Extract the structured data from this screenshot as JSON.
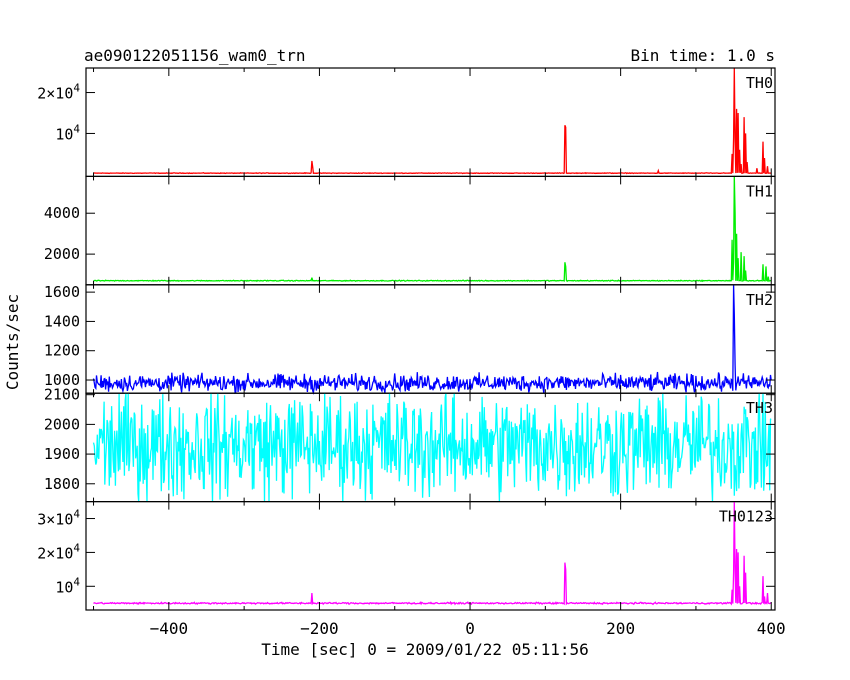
{
  "chart_data": {
    "type": "line",
    "title": "ae090122051156_wam0_trn",
    "subtitle": "Bin time: 1.0 s",
    "xlabel": "Time [sec] 0 = 2009/01/22 05:11:56",
    "ylabel": "Counts/sec",
    "xlim": [
      -510,
      405
    ],
    "xticks": [
      -400,
      -200,
      0,
      200,
      400
    ],
    "xtick_labels": [
      "−400",
      "−200",
      "0",
      "200",
      "400"
    ],
    "grid": false,
    "legend": "none",
    "panels": [
      {
        "name": "TH0",
        "color": "#ff0000",
        "ylim": [
          -500,
          26000
        ],
        "yticks": [
          {
            "value": 10000,
            "mant": "",
            "exp": "4"
          },
          {
            "value": 20000,
            "mant": "2×",
            "exp": "4"
          }
        ],
        "baseline": 300,
        "noise": 60,
        "peaks": [
          [
            -210,
            3300
          ],
          [
            -209,
            1800
          ],
          [
            126,
            12000
          ],
          [
            127,
            11500
          ],
          [
            250,
            900
          ],
          [
            348,
            5000
          ],
          [
            350,
            9000
          ],
          [
            351,
            26000
          ],
          [
            352,
            8000
          ],
          [
            354,
            16000
          ],
          [
            356,
            15000
          ],
          [
            358,
            6000
          ],
          [
            360,
            2500
          ],
          [
            364,
            14000
          ],
          [
            366,
            10000
          ],
          [
            368,
            3000
          ],
          [
            381,
            1500
          ],
          [
            389,
            8000
          ],
          [
            391,
            4000
          ],
          [
            395,
            2000
          ]
        ]
      },
      {
        "name": "TH1",
        "color": "#00ee00",
        "ylim": [
          500,
          5800
        ],
        "yticks": [
          {
            "value": 2000,
            "label": "2000"
          },
          {
            "value": 4000,
            "label": "4000"
          }
        ],
        "baseline": 700,
        "noise": 18,
        "peaks": [
          [
            -210,
            850
          ],
          [
            126,
            1600
          ],
          [
            127,
            1400
          ],
          [
            348,
            2700
          ],
          [
            350,
            1600
          ],
          [
            351,
            5800
          ],
          [
            352,
            4000
          ],
          [
            354,
            3000
          ],
          [
            356,
            1800
          ],
          [
            360,
            2100
          ],
          [
            364,
            1900
          ],
          [
            366,
            1200
          ],
          [
            389,
            1500
          ],
          [
            393,
            1400
          ],
          [
            396,
            900
          ]
        ]
      },
      {
        "name": "TH2",
        "color": "#0000ff",
        "ylim": [
          910,
          1650
        ],
        "yticks": [
          {
            "value": 1000,
            "label": "1000"
          },
          {
            "value": 1200,
            "label": "1200"
          },
          {
            "value": 1400,
            "label": "1400"
          },
          {
            "value": 1600,
            "label": "1600"
          }
        ],
        "baseline": 980,
        "noise": 50,
        "peaks": [
          [
            350,
            1650
          ],
          [
            351,
            1450
          ],
          [
            352,
            1100
          ]
        ]
      },
      {
        "name": "TH3",
        "color": "#00ffff",
        "ylim": [
          1740,
          2105
        ],
        "yticks": [
          {
            "value": 1800,
            "label": "1800"
          },
          {
            "value": 1900,
            "label": "1900"
          },
          {
            "value": 2000,
            "label": "2000"
          },
          {
            "value": 2100,
            "label": "2100"
          }
        ],
        "baseline": 1930,
        "noise": 150,
        "peaks": []
      },
      {
        "name": "TH0123",
        "color": "#ff00ff",
        "ylim": [
          3000,
          35000
        ],
        "yticks": [
          {
            "value": 10000,
            "mant": "",
            "exp": "4"
          },
          {
            "value": 20000,
            "mant": "2×",
            "exp": "4"
          },
          {
            "value": 30000,
            "mant": "3×",
            "exp": "4"
          }
        ],
        "baseline": 5000,
        "noise": 200,
        "peaks": [
          [
            -210,
            8000
          ],
          [
            126,
            17000
          ],
          [
            127,
            15000
          ],
          [
            348,
            9000
          ],
          [
            350,
            14000
          ],
          [
            351,
            35000
          ],
          [
            352,
            15000
          ],
          [
            354,
            21000
          ],
          [
            356,
            20000
          ],
          [
            358,
            10000
          ],
          [
            364,
            19000
          ],
          [
            366,
            14000
          ],
          [
            389,
            13000
          ],
          [
            391,
            7000
          ],
          [
            395,
            8000
          ]
        ]
      }
    ]
  }
}
